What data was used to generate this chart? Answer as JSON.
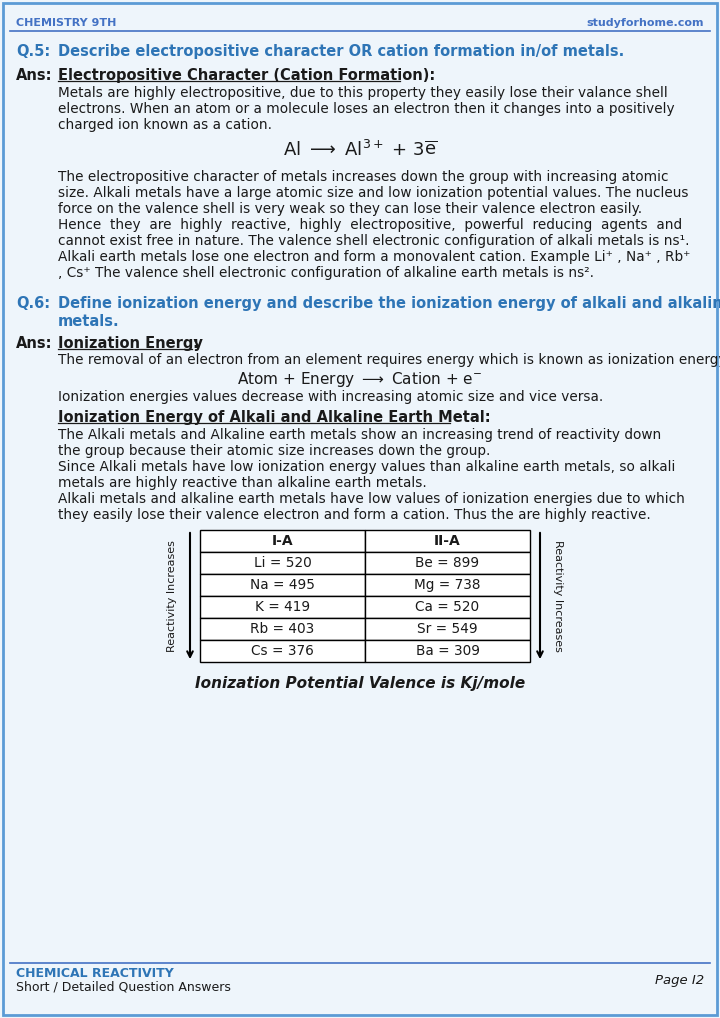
{
  "bg_color": "#eef5fb",
  "border_color": "#5b9bd5",
  "header_text_left": "CHEMISTRY 9TH",
  "header_text_right": "studyforhome.com",
  "header_color": "#4472c4",
  "text_color": "#1a1a1a",
  "question_color": "#2e75b6",
  "footer_left1": "CHEMICAL REACTIVITY",
  "footer_left2": "Short / Detailed Question Answers",
  "footer_right": "Page I2",
  "table_col1": "I-A",
  "table_col2": "II-A",
  "table_rows": [
    [
      "Li = 520",
      "Be = 899"
    ],
    [
      "Na = 495",
      "Mg = 738"
    ],
    [
      "K = 419",
      "Ca = 520"
    ],
    [
      "Rb = 403",
      "Sr = 549"
    ],
    [
      "Cs = 376",
      "Ba = 309"
    ]
  ],
  "table_caption": "Ionization Potential Valence is Kj/mole"
}
